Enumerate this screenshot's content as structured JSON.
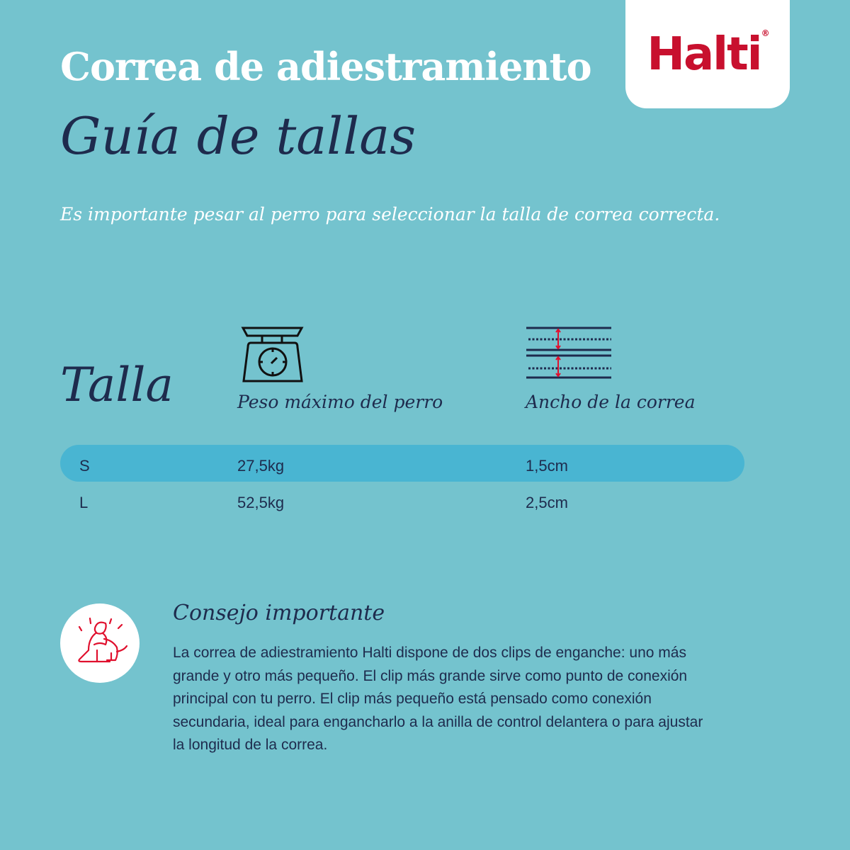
{
  "brand": {
    "logo": "Halti",
    "registered": "®",
    "color": "#c8102e"
  },
  "header": {
    "title": "Correa de adiestramiento",
    "subtitle": "Guía de tallas"
  },
  "intro": "Es importante pesar al perro para seleccionar la talla de correa correcta.",
  "table": {
    "columns": [
      {
        "label": "Talla"
      },
      {
        "label": "Peso máximo del perro",
        "icon": "scale-icon"
      },
      {
        "label": "Ancho de la correa",
        "icon": "leash-width-icon"
      }
    ],
    "rows": [
      {
        "size": "S",
        "weight": "27,5kg",
        "width": "1,5cm",
        "highlighted": true
      },
      {
        "size": "L",
        "weight": "52,5kg",
        "width": "2,5cm",
        "highlighted": false
      }
    ]
  },
  "tip": {
    "icon": "person-hugging-dog-icon",
    "title": "Consejo importante",
    "body": "La correa de adiestramiento Halti dispone de dos clips de enganche: uno más grande y otro más pequeño. El clip más grande sirve como punto de conexión principal con tu perro. El clip más pequeño está pensado como conexión secundaria, ideal para engancharlo a la anilla de control delantera o para ajustar la longitud de la correa."
  },
  "colors": {
    "background": "#74c3ce",
    "highlight_row": "#49b5d2",
    "text_dark": "#1e2b4d",
    "accent_red": "#e0102e"
  }
}
